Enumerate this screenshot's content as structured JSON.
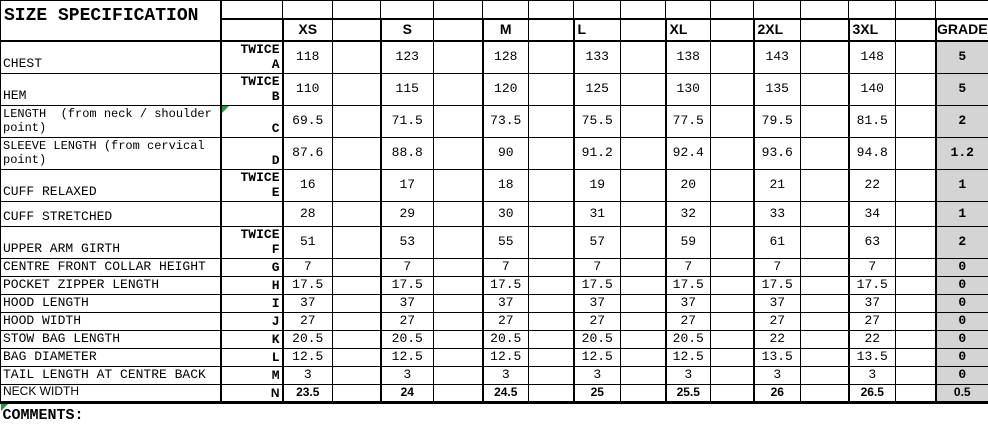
{
  "title": "SIZE SPECIFICATION",
  "comments": "COMMENTS:",
  "twice_label": "TWICE",
  "columns": {
    "sizes": [
      "XS",
      "S",
      "M",
      "L",
      "XL",
      "2XL",
      "3XL"
    ],
    "grade": "GRADE"
  },
  "rows": [
    {
      "label": "CHEST",
      "twice": true,
      "letter": "A",
      "values": [
        "118",
        "123",
        "128",
        "133",
        "138",
        "143",
        "148"
      ],
      "grade": "5"
    },
    {
      "label": "HEM",
      "twice": true,
      "letter": "B",
      "values": [
        "110",
        "115",
        "120",
        "125",
        "130",
        "135",
        "140"
      ],
      "grade": "5"
    },
    {
      "label": "LENGTH  (from neck / shoulder point)",
      "twice": false,
      "letter": "C",
      "values": [
        "69.5",
        "71.5",
        "73.5",
        "75.5",
        "77.5",
        "79.5",
        "81.5"
      ],
      "grade": "2",
      "comment_marker": true
    },
    {
      "label": "SLEEVE LENGTH (from cervical point)",
      "twice": false,
      "letter": "D",
      "values": [
        "87.6",
        "88.8",
        "90",
        "91.2",
        "92.4",
        "93.6",
        "94.8"
      ],
      "grade": "1.2"
    },
    {
      "label": "CUFF RELAXED",
      "twice": true,
      "letter": "E",
      "values": [
        "16",
        "17",
        "18",
        "19",
        "20",
        "21",
        "22"
      ],
      "grade": "1"
    },
    {
      "label": "CUFF STRETCHED",
      "twice": false,
      "letter": "",
      "values": [
        "28",
        "29",
        "30",
        "31",
        "32",
        "33",
        "34"
      ],
      "grade": "1"
    },
    {
      "label": "UPPER ARM GIRTH",
      "twice": true,
      "letter": "F",
      "values": [
        "51",
        "53",
        "55",
        "57",
        "59",
        "61",
        "63"
      ],
      "grade": "2"
    },
    {
      "label": "CENTRE FRONT COLLAR HEIGHT",
      "twice": false,
      "letter": "G",
      "values": [
        "7",
        "7",
        "7",
        "7",
        "7",
        "7",
        "7"
      ],
      "grade": "0"
    },
    {
      "label": "POCKET ZIPPER LENGTH",
      "twice": false,
      "letter": "H",
      "values": [
        "17.5",
        "17.5",
        "17.5",
        "17.5",
        "17.5",
        "17.5",
        "17.5"
      ],
      "grade": "0"
    },
    {
      "label": "HOOD LENGTH",
      "twice": false,
      "letter": "I",
      "values": [
        "37",
        "37",
        "37",
        "37",
        "37",
        "37",
        "37"
      ],
      "grade": "0"
    },
    {
      "label": "HOOD WIDTH",
      "twice": false,
      "letter": "J",
      "values": [
        "27",
        "27",
        "27",
        "27",
        "27",
        "27",
        "27"
      ],
      "grade": "0"
    },
    {
      "label": "STOW BAG LENGTH",
      "twice": false,
      "letter": "K",
      "values": [
        "20.5",
        "20.5",
        "20.5",
        "20.5",
        "20.5",
        "22",
        "22"
      ],
      "grade": "0"
    },
    {
      "label": "BAG DIAMETER",
      "twice": false,
      "letter": "L",
      "values": [
        "12.5",
        "12.5",
        "12.5",
        "12.5",
        "12.5",
        "13.5",
        "13.5"
      ],
      "grade": "0"
    },
    {
      "label": "TAIL LENGTH AT CENTRE BACK",
      "twice": false,
      "letter": "M",
      "values": [
        "3",
        "3",
        "3",
        "3",
        "3",
        "3",
        "3"
      ],
      "grade": "0"
    },
    {
      "label": "NECK WIDTH",
      "twice": false,
      "letter": "N",
      "values": [
        "23.5",
        "24",
        "24.5",
        "25",
        "25.5",
        "26",
        "26.5"
      ],
      "grade": "0.5",
      "sans": true
    }
  ],
  "icons": {
    "comment_marker": "green-corner-triangle"
  },
  "colors": {
    "grade_cell_bg": "#d4d4d4",
    "comment_marker_green": "#1e9c3c",
    "grid_line": "#000000"
  }
}
